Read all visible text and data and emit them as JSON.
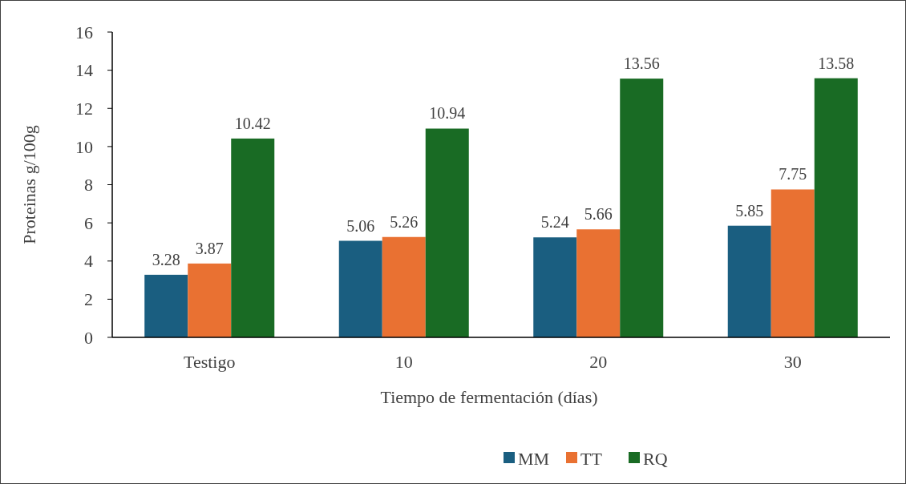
{
  "chart_data": {
    "type": "bar",
    "xlabel": "Tiempo de fermentación (días)",
    "ylabel": "Proteinas g/100g",
    "categories": [
      "Testigo",
      "10",
      "20",
      "30"
    ],
    "series": [
      {
        "name": "MM",
        "color": "#1a5e80",
        "values": [
          3.28,
          5.06,
          5.24,
          5.85
        ]
      },
      {
        "name": "TT",
        "color": "#e97132",
        "values": [
          3.87,
          5.26,
          5.66,
          7.75
        ]
      },
      {
        "name": "RQ",
        "color": "#196b24",
        "values": [
          10.42,
          10.94,
          13.56,
          13.58
        ]
      }
    ],
    "ylim": [
      0,
      16
    ],
    "yticks": [
      0,
      2,
      4,
      6,
      8,
      10,
      12,
      14,
      16
    ],
    "grid": false,
    "legend": "bottom",
    "data_labels": true
  }
}
